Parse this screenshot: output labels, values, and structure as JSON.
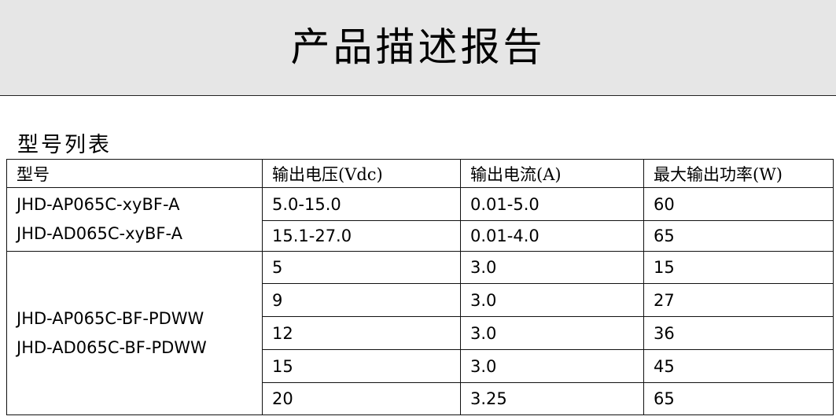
{
  "header": {
    "title": "产品描述报告"
  },
  "section": {
    "title": "型号列表"
  },
  "table": {
    "columns": [
      "型号",
      "输出电压(Vdc)",
      "输出电流(A)",
      "最大输出功率(W)"
    ],
    "groups": [
      {
        "models": [
          "JHD-AP065C-xyBF-A",
          "JHD-AD065C-xyBF-A"
        ],
        "rows": [
          [
            "5.0-15.0",
            "0.01-5.0",
            "60"
          ],
          [
            "15.1-27.0",
            "0.01-4.0",
            "65"
          ]
        ]
      },
      {
        "models": [
          "JHD-AP065C-BF-PDWW",
          "JHD-AD065C-BF-PDWW"
        ],
        "rows": [
          [
            "5",
            "3.0",
            "15"
          ],
          [
            "9",
            "3.0",
            "27"
          ],
          [
            "12",
            "3.0",
            "36"
          ],
          [
            "15",
            "3.0",
            "45"
          ],
          [
            "20",
            "3.25",
            "65"
          ]
        ]
      }
    ]
  }
}
